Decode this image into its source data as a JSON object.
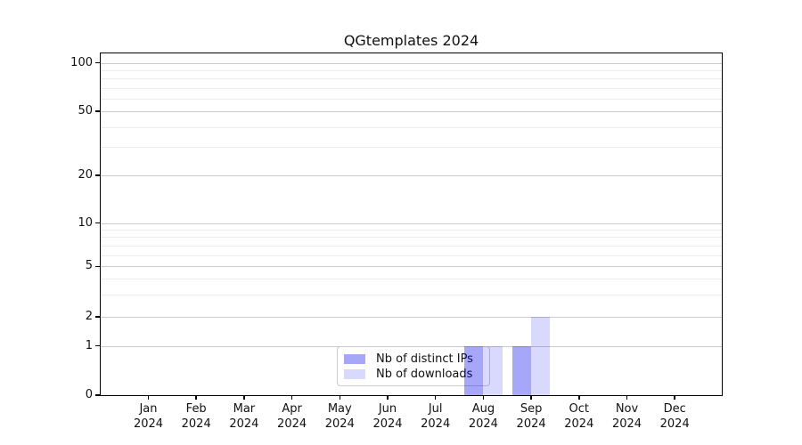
{
  "title": "QGtemplates 2024",
  "chart_data": {
    "type": "bar",
    "title": "QGtemplates 2024",
    "categories": [
      "Jan 2024",
      "Feb 2024",
      "Mar 2024",
      "Apr 2024",
      "May 2024",
      "Jun 2024",
      "Jul 2024",
      "Aug 2024",
      "Sep 2024",
      "Oct 2024",
      "Nov 2024",
      "Dec 2024"
    ],
    "series": [
      {
        "name": "Nb of distinct IPs",
        "color": "rgba(0,0,240,0.345)",
        "solid_color_on_white": "#a7a7f9",
        "values": [
          0,
          0,
          0,
          0,
          0,
          0,
          0,
          1,
          1,
          0,
          0,
          0
        ]
      },
      {
        "name": "Nb of downloads",
        "color": "rgba(0,0,240,0.15)",
        "solid_color_on_white": "#d9d9fc",
        "values": [
          0,
          0,
          0,
          0,
          0,
          0,
          0,
          1,
          2,
          0,
          0,
          0
        ]
      }
    ],
    "xlabel": "",
    "ylabel": "",
    "yscale": "symlog",
    "ylim": [
      0,
      113
    ],
    "yticks": [
      0,
      1,
      2,
      5,
      10,
      20,
      50,
      100
    ],
    "y_minor_gridlines": [
      3,
      4,
      6,
      7,
      8,
      9,
      30,
      40,
      60,
      70,
      80,
      90
    ],
    "grid": true,
    "legend_position": "lower center"
  },
  "colors": {
    "major_grid": "#cbcbcb",
    "minor_grid": "#ececec",
    "spine": "#000000",
    "text": "#111111",
    "background": "#ffffff"
  }
}
